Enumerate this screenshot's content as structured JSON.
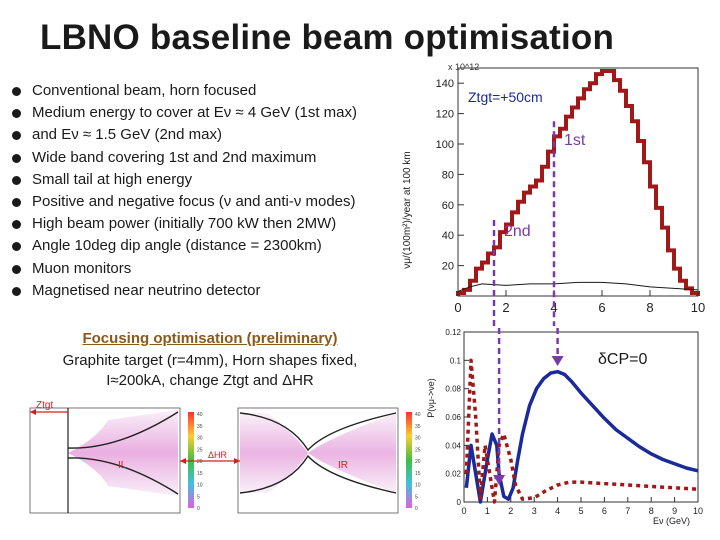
{
  "slide": {
    "title": "LBNO baseline beam optimisation",
    "bullets": [
      "Conventional beam, horn focused",
      "Medium energy to cover at Eν ≈ 4 GeV (1st max)",
      "and Eν ≈ 1.5 GeV (2nd max)",
      "Wide band covering 1st and 2nd maximum",
      "Small tail at high energy",
      "Positive and negative focus (ν and anti-ν modes)",
      "High beam power (initially 700 kW then 2MW)",
      "Angle 10deg dip angle (distance = 2300km)",
      "Muon monitors",
      "Magnetised near neutrino detector"
    ],
    "focus_heading": "Focusing optimisation (preliminary)",
    "focus_lines": [
      "Graphite target (r=4mm), Horn shapes fixed,",
      "I≈200kA, change Ztgt and ΔHR"
    ]
  },
  "horn_plot": {
    "label_ztgt": "Ztgt",
    "label_delta": "ΔHR",
    "label_i": "IL",
    "label_r": "IR",
    "scale_ticks": [
      "40",
      "35",
      "30",
      "25",
      "20",
      "15",
      "10",
      "5",
      "0"
    ],
    "colors": {
      "field": "#e8a6de",
      "field_light": "#f5e6f5",
      "arrow": "#d22020"
    }
  },
  "chart_data": [
    {
      "type": "line",
      "title": "",
      "annotation": "Ztgt=+50cm",
      "xlabel": "",
      "ylabel": "νμ/(100m²)/year at 100 km",
      "multiplier": "x 10^12",
      "xlim": [
        0,
        10
      ],
      "ylim": [
        0,
        150
      ],
      "x_ticks": [
        "0",
        "2",
        "4",
        "6",
        "8",
        "10"
      ],
      "y_ticks": [
        "20",
        "40",
        "60",
        "80",
        "100",
        "120",
        "140"
      ],
      "markers": [
        {
          "label": "1st",
          "x": 4.0
        },
        {
          "label": "2nd",
          "x": 1.5
        }
      ],
      "series": [
        {
          "name": "νμ flux",
          "color": "#a01818",
          "bin_edges": [
            0,
            0.25,
            0.5,
            0.75,
            1,
            1.25,
            1.5,
            1.75,
            2,
            2.25,
            2.5,
            2.75,
            3,
            3.25,
            3.5,
            3.75,
            4,
            4.25,
            4.5,
            4.75,
            5,
            5.25,
            5.5,
            5.75,
            6,
            6.25,
            6.5,
            6.75,
            7,
            7.25,
            7.5,
            7.75,
            8,
            8.25,
            8.5,
            8.75,
            9,
            9.25,
            9.5,
            9.75,
            10
          ],
          "values": [
            2,
            4,
            10,
            18,
            22,
            28,
            32,
            42,
            47,
            55,
            62,
            68,
            72,
            76,
            85,
            95,
            105,
            110,
            118,
            124,
            130,
            136,
            140,
            146,
            148,
            148,
            142,
            135,
            125,
            115,
            102,
            88,
            72,
            58,
            45,
            30,
            18,
            10,
            5,
            2
          ]
        },
        {
          "name": "tail",
          "color": "#1a1a1a",
          "x": [
            0,
            0.5,
            1,
            2,
            3,
            4,
            5,
            6,
            7,
            8,
            9,
            10
          ],
          "values": [
            3,
            6,
            8,
            7,
            8,
            8,
            9,
            9,
            8,
            6,
            5,
            4
          ]
        }
      ]
    },
    {
      "type": "line",
      "title": "",
      "annotation": "δCP=0",
      "xlabel": "Eν (GeV)",
      "ylabel": "P(νμ->νe)",
      "xlim": [
        0,
        10
      ],
      "ylim": [
        0,
        0.12
      ],
      "x_ticks": [
        "0",
        "1",
        "2",
        "3",
        "4",
        "5",
        "6",
        "7",
        "8",
        "9",
        "10"
      ],
      "y_ticks": [
        "0",
        "0.02",
        "0.04",
        "0.06",
        "0.08",
        "0.1",
        "0.12"
      ],
      "series": [
        {
          "name": "P(νμ->νe)",
          "color": "#1a2a9a",
          "x": [
            0.1,
            0.3,
            0.5,
            0.7,
            0.9,
            1.0,
            1.2,
            1.4,
            1.5,
            1.7,
            1.9,
            2.1,
            2.3,
            2.5,
            2.8,
            3.1,
            3.4,
            3.7,
            4.0,
            4.3,
            4.6,
            5.0,
            5.5,
            6.0,
            6.5,
            7.0,
            7.5,
            8.0,
            8.5,
            9.0,
            9.5,
            10.0
          ],
          "values": [
            0.01,
            0.04,
            0.02,
            0.0,
            0.02,
            0.03,
            0.048,
            0.04,
            0.02,
            0.004,
            0.002,
            0.01,
            0.03,
            0.048,
            0.068,
            0.08,
            0.087,
            0.091,
            0.092,
            0.09,
            0.085,
            0.077,
            0.068,
            0.059,
            0.051,
            0.045,
            0.039,
            0.034,
            0.03,
            0.027,
            0.024,
            0.022
          ]
        },
        {
          "name": "anti-ν",
          "color": "#a01818",
          "dashed": true,
          "x": [
            0.1,
            0.3,
            0.5,
            0.7,
            0.9,
            1.1,
            1.3,
            1.5,
            1.7,
            2.0,
            2.2,
            2.5,
            3.0,
            3.5,
            4.0,
            4.5,
            5.0,
            6.0,
            7.0,
            8.0,
            9.0,
            10.0
          ],
          "values": [
            0.02,
            0.1,
            0.06,
            0.003,
            0.04,
            0.02,
            0.0,
            0.04,
            0.048,
            0.03,
            0.012,
            0.002,
            0.003,
            0.008,
            0.012,
            0.014,
            0.014,
            0.013,
            0.012,
            0.011,
            0.01,
            0.009
          ]
        }
      ]
    }
  ]
}
